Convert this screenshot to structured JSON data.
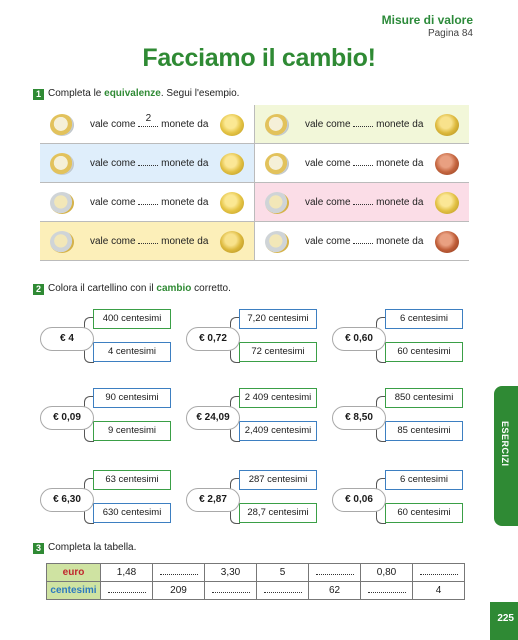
{
  "header": {
    "section": "Misure di valore",
    "page_ref": "Pagina 84"
  },
  "title": "Facciamo il cambio!",
  "ex1": {
    "num": "1",
    "text_a": "Completa le ",
    "text_hl": "equivalenze",
    "text_b": ". Segui l'esempio.",
    "phrase_a": "vale come",
    "phrase_b": "monete da",
    "example_answer": "2"
  },
  "ex2": {
    "num": "2",
    "text_a": "Colora il cartellino con il ",
    "text_hl": "cambio",
    "text_b": " corretto.",
    "items": [
      {
        "amount": "€ 4",
        "opt_a": "400 centesimi",
        "opt_b": "4 centesimi"
      },
      {
        "amount": "€ 0,72",
        "opt_a": "7,20 centesimi",
        "opt_b": "72 centesimi"
      },
      {
        "amount": "€ 0,60",
        "opt_a": "6 centesimi",
        "opt_b": "60 centesimi"
      },
      {
        "amount": "€ 0,09",
        "opt_a": "90 centesimi",
        "opt_b": "9 centesimi"
      },
      {
        "amount": "€ 24,09",
        "opt_a": "2 409 centesimi",
        "opt_b": "2,409 centesimi"
      },
      {
        "amount": "€ 8,50",
        "opt_a": "850 centesimi",
        "opt_b": "85 centesimi"
      },
      {
        "amount": "€ 6,30",
        "opt_a": "63 centesimi",
        "opt_b": "630 centesimi"
      },
      {
        "amount": "€ 2,87",
        "opt_a": "287 centesimi",
        "opt_b": "28,7 centesimi"
      },
      {
        "amount": "€ 0,06",
        "opt_a": "6 centesimi",
        "opt_b": "60 centesimi"
      }
    ]
  },
  "ex3": {
    "num": "3",
    "text": "Completa la tabella.",
    "row_euro_label": "euro",
    "row_cent_label": "centesimi",
    "euro": [
      "1,48",
      "",
      "3,30",
      "5",
      "",
      "0,80",
      ""
    ],
    "cent": [
      "",
      "209",
      "",
      "",
      "62",
      "",
      "4"
    ]
  },
  "side_tab": "ESERCIZI",
  "page_number": "225",
  "colors": {
    "green": "#2f8a34",
    "euro_red": "#c0262d",
    "cent_blue": "#2c7ac0"
  }
}
